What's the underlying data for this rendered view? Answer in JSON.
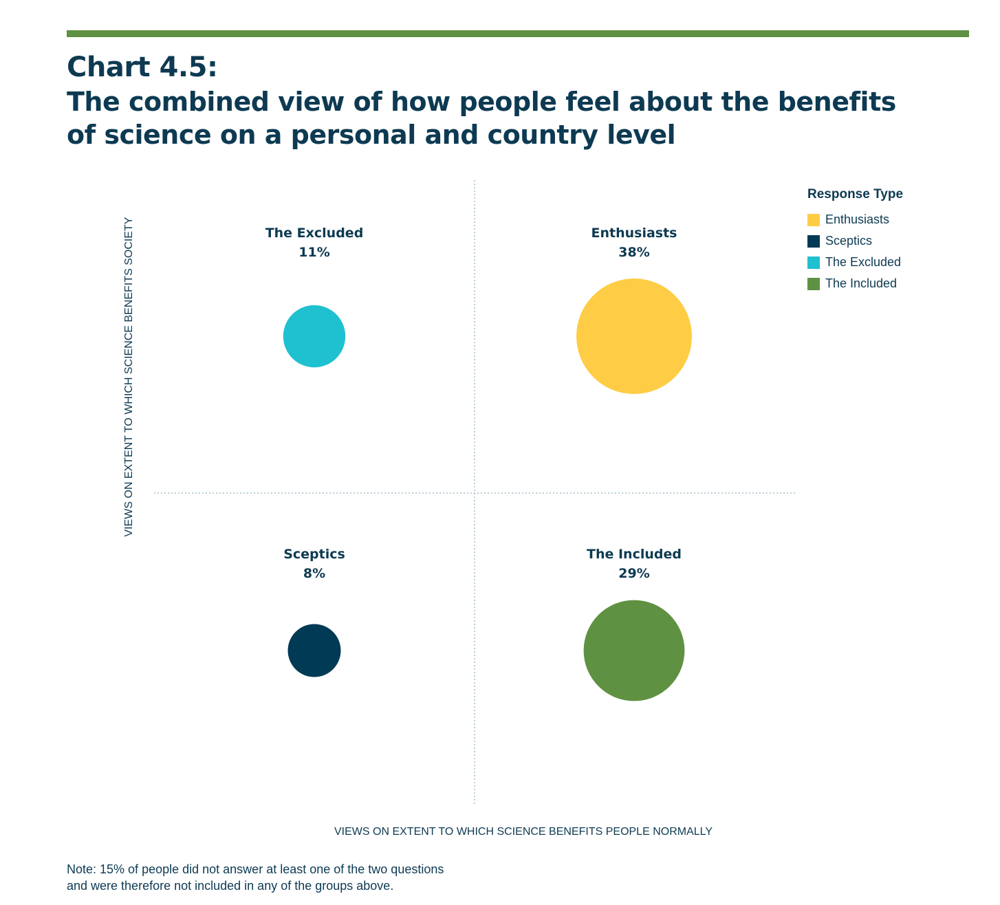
{
  "title": {
    "chart_number": "Chart 4.5:",
    "line2": "The combined view of how people feel about the benefits",
    "line3": "of science on a personal and country level"
  },
  "legend": {
    "title": "Response Type",
    "items": [
      {
        "label": "Enthusiasts",
        "color": "#fecd45"
      },
      {
        "label": "Sceptics",
        "color": "#003a54"
      },
      {
        "label": "The Excluded",
        "color": "#1fc0d0"
      },
      {
        "label": "The Included",
        "color": "#5f9142"
      }
    ]
  },
  "axes": {
    "y_label": "VIEWS ON EXTENT TO WHICH SCIENCE BENEFITS SOCIETY",
    "x_label": "VIEWS ON EXTENT TO WHICH SCIENCE BENEFITS PEOPLE NORMALLY"
  },
  "note": {
    "line1": "Note: 15% of people did not answer at least one of the two questions",
    "line2": "and were therefore not included in any of the groups above."
  },
  "chart_data": {
    "type": "bubble-quadrant",
    "points": [
      {
        "name": "The Excluded",
        "label": "11%",
        "value": 11,
        "quadrant": "top-left",
        "color": "#1fc0d0"
      },
      {
        "name": "Enthusiasts",
        "label": "38%",
        "value": 38,
        "quadrant": "top-right",
        "color": "#fecd45"
      },
      {
        "name": "Sceptics",
        "label": "8%",
        "value": 8,
        "quadrant": "bottom-left",
        "color": "#003a54"
      },
      {
        "name": "The Included",
        "label": "29%",
        "value": 29,
        "quadrant": "bottom-right",
        "color": "#5f9142"
      }
    ],
    "grid": "quadrant dividers dotted",
    "legend_position": "top-right"
  }
}
